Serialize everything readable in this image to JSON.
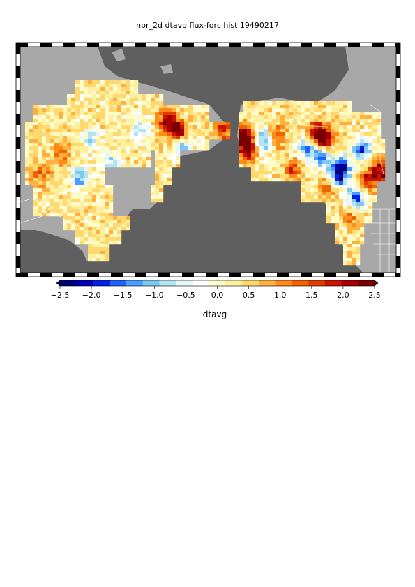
{
  "title": "npr_2d dtavg flux-forc hist 19490217",
  "colorbar": {
    "label": "dtavg",
    "min": -2.5,
    "max": 2.5,
    "tick_labels": [
      "−2.5",
      "−2.0",
      "−1.5",
      "−1.0",
      "−0.5",
      "0.0",
      "0.5",
      "1.0",
      "1.5",
      "2.0",
      "2.5"
    ],
    "colors": [
      "#00007a",
      "#0000b4",
      "#0020e6",
      "#2060ff",
      "#4a9cff",
      "#7cc8f0",
      "#b4e4f2",
      "#e8f6fa",
      "#ffffff",
      "#fffccc",
      "#fff0a0",
      "#ffd870",
      "#ffb040",
      "#ff8a18",
      "#f06400",
      "#e03c00",
      "#c81400",
      "#a80000",
      "#7a0000"
    ]
  },
  "map_colors": {
    "ocean": "#5f5f5f",
    "land": "#a8a8a8",
    "boundaries": "#ffffff"
  }
}
